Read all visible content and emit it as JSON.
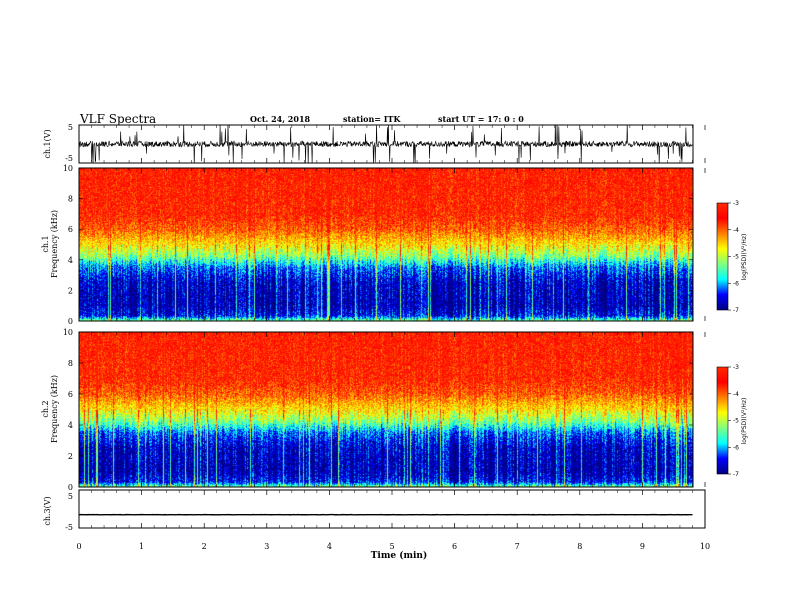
{
  "header": {
    "title": "VLF Spectra",
    "date": "Oct. 24, 2018",
    "station": "station= ITK",
    "start": "start UT =   17: 0  : 0"
  },
  "colors": {
    "spectrum": [
      "#00007f",
      "#0000ff",
      "#00ffff",
      "#7fff7f",
      "#ffff00",
      "#ff7f00",
      "#ff0000",
      "#ff2a00"
    ]
  },
  "chart_data": [
    {
      "type": "line",
      "name": "ch1-waveform",
      "ylabel": "ch.1(V)",
      "ylim": [
        -5,
        5
      ],
      "yticks": [
        "5",
        "-5"
      ],
      "baseline": 0,
      "noise_amplitude": 1.5,
      "spikes": "frequent impulsive spikes reaching ±5 V"
    },
    {
      "type": "heatmap",
      "name": "ch1-spectrogram",
      "ylabel": "ch.1\nFrequency (kHz)",
      "ylabel_ch": "ch.1",
      "ylabel_freq": "Frequency (kHz)",
      "ylim": [
        0,
        10
      ],
      "yticks": [
        "0",
        "2",
        "4",
        "6",
        "8",
        "10"
      ],
      "colorbar": {
        "label": "log(PSD)(V²/Hz)",
        "ticks": [
          "-3",
          "-4",
          "-5",
          "-6",
          "-7"
        ],
        "range": [
          -7,
          -3
        ]
      },
      "profile_khz": [
        [
          0,
          -5.4
        ],
        [
          0.3,
          -6.5
        ],
        [
          1,
          -6.8
        ],
        [
          2.5,
          -6.7
        ],
        [
          3.5,
          -6.2
        ],
        [
          4.2,
          -5.3
        ],
        [
          5,
          -4.6
        ],
        [
          6,
          -4.0
        ],
        [
          7,
          -3.7
        ],
        [
          10,
          -3.6
        ]
      ]
    },
    {
      "type": "heatmap",
      "name": "ch2-spectrogram",
      "ylabel_ch": "ch.2",
      "ylabel_freq": "Frequency (kHz)",
      "ylim": [
        0,
        10
      ],
      "yticks": [
        "0",
        "2",
        "4",
        "6",
        "8",
        "10"
      ],
      "colorbar": {
        "label": "log(PSD)(V²/Hz)",
        "ticks": [
          "-3",
          "-4",
          "-5",
          "-6",
          "-7"
        ],
        "range": [
          -7,
          -3
        ]
      },
      "profile_khz": [
        [
          0,
          -5.4
        ],
        [
          0.3,
          -6.5
        ],
        [
          1,
          -6.8
        ],
        [
          2.5,
          -6.7
        ],
        [
          3.5,
          -6.2
        ],
        [
          4.2,
          -5.3
        ],
        [
          5,
          -4.6
        ],
        [
          6,
          -4.0
        ],
        [
          7,
          -3.7
        ],
        [
          10,
          -3.6
        ]
      ]
    },
    {
      "type": "line",
      "name": "ch3-waveform",
      "ylabel": "ch.3(V)",
      "ylim": [
        -5,
        5
      ],
      "yticks": [
        "5",
        "-5"
      ],
      "baseline": -1.5,
      "noise_amplitude": 0.05
    }
  ],
  "xaxis": {
    "label": "Time (min)",
    "xlim": [
      0,
      10
    ],
    "ticks": [
      "0",
      "1",
      "2",
      "3",
      "4",
      "5",
      "6",
      "7",
      "8",
      "9",
      "10"
    ],
    "data_end_min": 9.8
  }
}
